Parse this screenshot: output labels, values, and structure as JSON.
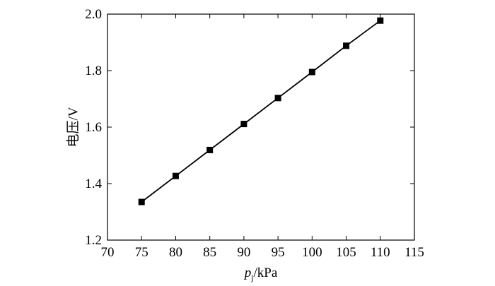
{
  "chart_data": {
    "type": "line",
    "title": "",
    "xlabel_italic": "p",
    "xlabel_sub": "j",
    "xlabel_unit": "/kPa",
    "ylabel": "电压/V",
    "xlim": [
      70,
      115
    ],
    "ylim": [
      1.2,
      2.0
    ],
    "x_ticks": [
      70,
      75,
      80,
      85,
      90,
      95,
      100,
      105,
      110,
      115
    ],
    "y_ticks": [
      "1.2",
      "1.4",
      "1.6",
      "1.8",
      "2.0"
    ],
    "x": [
      75,
      80,
      85,
      90,
      95,
      100,
      105,
      110
    ],
    "series": [
      {
        "values": [
          1.335,
          1.427,
          1.519,
          1.611,
          1.703,
          1.795,
          1.888,
          1.977
        ]
      }
    ],
    "marker": "square",
    "color": "#000000",
    "grid": false
  }
}
